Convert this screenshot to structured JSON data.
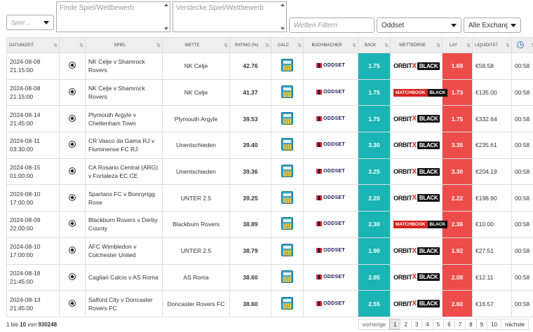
{
  "filters": {
    "sport_placeholder": "Sport ...",
    "find_placeholder": "Finde Spiel/Wettbewerb",
    "hide_placeholder": "Verstecke Spiel/Wettbewerb",
    "bet_filter_placeholder": "Wetten Filtern",
    "bookmaker_selected": "Oddset",
    "exchange_selected": "Alle Exchange"
  },
  "columns": {
    "date": "Datum/Zeit",
    "sport": "",
    "match": "Spiel",
    "bet": "Wette",
    "rating": "Rating (%)",
    "calc": "Calc",
    "bookmaker": "Buchmacher",
    "back": "Back",
    "exchange": "Wettbörse",
    "lay": "Lay",
    "liquidity": "Liquidität",
    "time_icon": "clock-icon"
  },
  "rows": [
    {
      "date": "2024-08-08",
      "time": "21:15:00",
      "match": "NK Celje v Shamrock Rovers",
      "bet": "NK Celje",
      "rating": "42.76",
      "bookmaker": "ODDSET",
      "back": "1.75",
      "exchange": "orbitx",
      "lay": "1.69",
      "liquidity": "€58.58",
      "remaining": "00:58"
    },
    {
      "date": "2024-08-08",
      "time": "21:15:00",
      "match": "NK Celje v Shamrock Rovers",
      "bet": "NK Celje",
      "rating": "41.37",
      "bookmaker": "ODDSET",
      "back": "1.75",
      "exchange": "matchbook",
      "lay": "1.73",
      "liquidity": "€135.00",
      "remaining": "00:58"
    },
    {
      "date": "2024-08-14",
      "time": "21:45:00",
      "match": "Plymouth Argyle v Cheltenham Town",
      "bet": "Plymouth Argyle",
      "rating": "39.53",
      "bookmaker": "ODDSET",
      "back": "1.75",
      "exchange": "orbitx",
      "lay": "1.75",
      "liquidity": "€332.64",
      "remaining": "00:58"
    },
    {
      "date": "2024-08-11",
      "time": "03:30:00",
      "match": "CR Vasco da Gama RJ v Fluminense FC RJ",
      "bet": "Unentschieden",
      "rating": "39.40",
      "bookmaker": "ODDSET",
      "back": "3.30",
      "exchange": "orbitx",
      "lay": "3.35",
      "liquidity": "€235.61",
      "remaining": "00:58"
    },
    {
      "date": "2024-08-15",
      "time": "01:00:00",
      "match": "CA Rosario Central (ARG) v Fortaleza EC CE",
      "bet": "Unentschieden",
      "rating": "39.36",
      "bookmaker": "ODDSET",
      "back": "3.25",
      "exchange": "orbitx",
      "lay": "3.30",
      "liquidity": "€204.19",
      "remaining": "00:58"
    },
    {
      "date": "2024-08-10",
      "time": "17:00:00",
      "match": "Spartans FC v Bonnyrigg Rose",
      "bet": "UNTER 2.5",
      "rating": "39.25",
      "bookmaker": "ODDSET",
      "back": "2.20",
      "exchange": "orbitx",
      "lay": "2.22",
      "liquidity": "€198.90",
      "remaining": "00:58"
    },
    {
      "date": "2024-08-09",
      "time": "22:00:00",
      "match": "Blackburn Rovers v Derby County",
      "bet": "Blackburn Rovers",
      "rating": "38.89",
      "bookmaker": "ODDSET",
      "back": "2.30",
      "exchange": "matchbook",
      "lay": "2.36",
      "liquidity": "€10.00",
      "remaining": "00:58"
    },
    {
      "date": "2024-08-10",
      "time": "17:00:00",
      "match": "AFC Wimbledon v Colchester United",
      "bet": "UNTER 2.5",
      "rating": "38.79",
      "bookmaker": "ODDSET",
      "back": "1.90",
      "exchange": "orbitx",
      "lay": "1.92",
      "liquidity": "€27.51",
      "remaining": "00:58"
    },
    {
      "date": "2024-08-18",
      "time": "21:45:00",
      "match": "Cagliari Calcio v AS Roma",
      "bet": "AS Roma",
      "rating": "38.60",
      "bookmaker": "ODDSET",
      "back": "2.05",
      "exchange": "orbitx",
      "lay": "2.08",
      "liquidity": "€12.11",
      "remaining": "00:58"
    },
    {
      "date": "2024-08-13",
      "time": "21:45:00",
      "match": "Salford City v Doncaster Rovers FC",
      "bet": "Doncaster Rovers FC",
      "rating": "38.60",
      "bookmaker": "ODDSET",
      "back": "2.55",
      "exchange": "orbitx",
      "lay": "2.60",
      "liquidity": "€16.57",
      "remaining": "00:58"
    }
  ],
  "exchange_logos": {
    "orbitx": {
      "left": "ORBIT",
      "x": "X",
      "right": "BLACK"
    },
    "matchbook": {
      "left": "MATCHBOOK",
      "right": "BLACK"
    }
  },
  "footer": {
    "info_start": "1",
    "info_bis": "bis",
    "info_end": "10",
    "info_von": "von",
    "info_total": "930248",
    "prev": "vorherige",
    "pages": [
      "1",
      "2",
      "3",
      "4",
      "5",
      "6",
      "7",
      "8",
      "9",
      "10"
    ],
    "active_page": "1",
    "next": "nächste"
  },
  "colors": {
    "back": "#1ab4b4",
    "lay": "#ee4b4b"
  }
}
